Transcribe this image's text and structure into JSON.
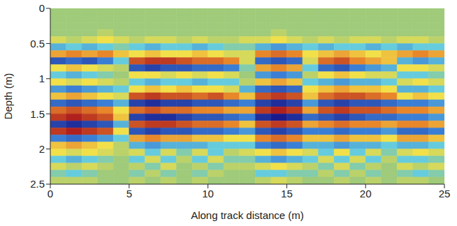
{
  "chart_data": {
    "type": "heatmap",
    "xlabel": "Along track distance (m)",
    "ylabel": "Depth (m)",
    "xlim": [
      0,
      25
    ],
    "xticks": [
      0,
      5,
      10,
      15,
      20,
      25
    ],
    "ylim": [
      2.5,
      0
    ],
    "yticks": [
      0,
      0.5,
      1,
      1.5,
      2,
      2.5
    ],
    "zlim": [
      -1,
      1
    ],
    "x": [
      0.5,
      1.5,
      2.5,
      3.5,
      4.5,
      5.5,
      6.5,
      7.5,
      8.5,
      9.5,
      10.5,
      11.5,
      12.5,
      13.5,
      14.5,
      15.5,
      16.5,
      17.5,
      18.5,
      19.5,
      20.5,
      21.5,
      22.5,
      23.5,
      24.5
    ],
    "y": [
      0.05,
      0.15,
      0.25,
      0.35,
      0.45,
      0.55,
      0.65,
      0.75,
      0.85,
      0.95,
      1.05,
      1.15,
      1.25,
      1.35,
      1.45,
      1.55,
      1.65,
      1.75,
      1.85,
      1.95,
      2.05,
      2.15,
      2.25,
      2.35,
      2.45
    ],
    "z": [
      [
        0,
        0,
        0,
        0,
        0,
        0,
        0,
        0,
        0,
        0,
        0,
        0,
        0,
        0,
        0,
        0,
        0,
        0,
        0,
        0,
        0,
        0,
        0,
        0,
        0
      ],
      [
        0,
        0,
        0,
        0,
        0,
        0,
        0,
        0,
        0,
        0,
        0,
        0,
        0,
        0,
        0,
        0,
        0,
        0,
        0,
        0,
        0,
        0,
        0,
        0,
        0
      ],
      [
        0,
        0,
        0,
        0,
        0,
        0,
        0,
        0,
        0,
        0,
        0,
        0,
        0,
        0,
        0,
        0,
        0,
        0,
        0,
        0,
        0,
        0,
        0,
        0,
        0
      ],
      [
        0,
        0,
        0,
        0.1,
        0,
        0,
        0,
        0,
        0,
        0,
        0,
        0,
        0,
        0,
        0.1,
        0,
        0,
        0,
        0,
        0,
        0,
        0,
        0,
        0,
        0
      ],
      [
        0.2,
        0.1,
        0.2,
        0.3,
        0.2,
        0.1,
        0.2,
        0.2,
        0.1,
        0.2,
        0.1,
        0.1,
        0.2,
        0.2,
        0.3,
        0.2,
        0.1,
        0.2,
        0.1,
        0.2,
        0.2,
        0.1,
        0.2,
        0.2,
        0.1
      ],
      [
        -0.3,
        -0.2,
        -0.3,
        -0.2,
        -0.1,
        -0.2,
        -0.3,
        -0.2,
        -0.2,
        -0.3,
        -0.2,
        -0.1,
        -0.1,
        -0.3,
        -0.4,
        -0.3,
        -0.2,
        -0.3,
        -0.2,
        -0.2,
        -0.3,
        -0.2,
        -0.3,
        -0.2,
        -0.2
      ],
      [
        0.5,
        0.6,
        0.5,
        0.6,
        0.4,
        0.3,
        0.4,
        0.3,
        0.3,
        0.4,
        0.3,
        0.2,
        0.2,
        0.6,
        0.7,
        0.6,
        0.3,
        0.4,
        0.5,
        0.4,
        0.3,
        0.4,
        0.5,
        0.6,
        0.5
      ],
      [
        -0.7,
        -0.6,
        -0.7,
        -0.5,
        -0.2,
        0.8,
        0.9,
        0.9,
        0.8,
        0.7,
        0.7,
        0.6,
        0.2,
        -0.6,
        -0.7,
        -0.6,
        0.2,
        0.7,
        0.8,
        0.6,
        0.5,
        0.4,
        -0.3,
        -0.4,
        -0.3
      ],
      [
        0.3,
        0.4,
        0.3,
        0.2,
        0.1,
        -0.7,
        -0.8,
        -0.7,
        -0.7,
        -0.6,
        -0.6,
        -0.5,
        -0.1,
        0.5,
        0.6,
        0.5,
        -0.2,
        -0.6,
        -0.7,
        -0.5,
        -0.4,
        -0.3,
        0.3,
        0.3,
        0.2
      ],
      [
        -0.2,
        -0.3,
        -0.2,
        -0.1,
        0,
        0.3,
        0.3,
        0.2,
        0.3,
        0.2,
        0.3,
        0.2,
        0,
        -0.4,
        -0.5,
        -0.4,
        0.1,
        0.3,
        0.4,
        0.3,
        0.2,
        0.2,
        -0.2,
        -0.2,
        -0.1
      ],
      [
        0.3,
        0.2,
        0.3,
        0.2,
        0.1,
        -0.2,
        -0.3,
        -0.2,
        -0.2,
        -0.3,
        -0.2,
        -0.2,
        0.1,
        0.4,
        0.5,
        0.4,
        -0.2,
        -0.3,
        -0.4,
        -0.3,
        -0.3,
        -0.2,
        0.2,
        0.3,
        0.2
      ],
      [
        -0.4,
        -0.5,
        -0.4,
        -0.3,
        -0.2,
        0.3,
        0.4,
        0.3,
        0.4,
        0.3,
        0.3,
        0.2,
        -0.3,
        -0.6,
        -0.7,
        -0.6,
        0.3,
        0.4,
        0.5,
        0.4,
        0.4,
        0.3,
        -0.3,
        -0.3,
        -0.2
      ],
      [
        0.4,
        0.5,
        0.4,
        0.3,
        0.2,
        0.8,
        0.9,
        0.8,
        0.8,
        0.7,
        0.8,
        0.6,
        0.4,
        0.8,
        0.9,
        0.8,
        0.4,
        0.7,
        0.8,
        0.8,
        0.7,
        0.6,
        0.3,
        0.4,
        0.3
      ],
      [
        -0.6,
        -0.7,
        -0.6,
        -0.5,
        -0.3,
        -0.8,
        -0.9,
        -0.8,
        -0.8,
        -0.7,
        -0.7,
        -0.6,
        -0.5,
        -0.8,
        -0.9,
        -0.8,
        -0.4,
        -0.7,
        -0.8,
        -0.7,
        -0.7,
        -0.6,
        -0.5,
        -0.5,
        -0.4
      ],
      [
        0.7,
        0.8,
        0.7,
        0.6,
        0.3,
        0.7,
        0.8,
        0.7,
        0.7,
        0.6,
        0.6,
        0.5,
        0.5,
        0.9,
        1.0,
        0.9,
        0.5,
        0.8,
        0.9,
        0.8,
        0.8,
        0.7,
        0.6,
        0.6,
        0.5
      ],
      [
        0.9,
        1.0,
        0.9,
        0.8,
        0.4,
        -0.8,
        -0.9,
        -0.9,
        -0.8,
        -0.7,
        -0.7,
        -0.6,
        -0.5,
        -0.9,
        -1.0,
        -0.9,
        -0.6,
        -0.7,
        -0.8,
        -0.7,
        -0.6,
        -0.6,
        -0.5,
        -0.5,
        -0.4
      ],
      [
        -0.8,
        -0.9,
        -0.8,
        -0.7,
        -0.3,
        0.8,
        0.9,
        0.9,
        0.8,
        0.7,
        0.7,
        0.6,
        0.4,
        0.8,
        0.9,
        0.8,
        0.5,
        0.6,
        0.7,
        0.6,
        0.6,
        0.5,
        0.6,
        0.6,
        0.5
      ],
      [
        0.9,
        1.0,
        0.9,
        0.8,
        0.3,
        -0.7,
        -0.8,
        -0.7,
        -0.7,
        -0.6,
        -0.6,
        -0.5,
        -0.4,
        -0.7,
        -0.8,
        -0.7,
        -0.5,
        -0.5,
        -0.6,
        -0.5,
        -0.5,
        -0.4,
        -0.6,
        -0.6,
        -0.5
      ],
      [
        -0.5,
        -0.6,
        -0.5,
        -0.4,
        -0.2,
        0.5,
        0.6,
        0.5,
        0.5,
        0.4,
        0.4,
        0.3,
        0.3,
        0.6,
        0.7,
        0.6,
        0.4,
        0.4,
        0.5,
        0.4,
        0.4,
        0.3,
        0.5,
        0.5,
        0.4
      ],
      [
        0.4,
        0.5,
        0.4,
        0.3,
        0.1,
        -0.3,
        -0.4,
        -0.3,
        -0.3,
        -0.3,
        -0.2,
        -0.2,
        -0.2,
        -0.5,
        -0.6,
        -0.5,
        -0.3,
        -0.3,
        -0.4,
        -0.3,
        -0.3,
        -0.2,
        -0.3,
        -0.3,
        -0.2
      ],
      [
        0.3,
        0.2,
        0.3,
        0.2,
        0.1,
        0.2,
        -0.2,
        0.2,
        -0.1,
        0.2,
        -0.2,
        0.1,
        0.2,
        0.3,
        0.4,
        0.3,
        0.2,
        -0.2,
        0.3,
        -0.2,
        0.2,
        -0.1,
        0.2,
        0.3,
        0.2
      ],
      [
        -0.2,
        -0.3,
        -0.2,
        -0.1,
        0,
        -0.2,
        0.2,
        -0.2,
        0.1,
        -0.2,
        0.2,
        -0.1,
        -0.1,
        -0.3,
        -0.4,
        -0.3,
        -0.2,
        0.2,
        -0.2,
        0.2,
        -0.2,
        0.1,
        -0.2,
        -0.2,
        -0.1
      ],
      [
        0.2,
        0.1,
        0.2,
        0.1,
        0,
        0.1,
        -0.1,
        0.2,
        0,
        0.1,
        -0.1,
        0.1,
        0.1,
        0.2,
        0.3,
        0.2,
        0.1,
        -0.1,
        0.2,
        -0.1,
        0.1,
        0,
        0.2,
        0.1,
        0.2
      ],
      [
        -0.1,
        -0.2,
        -0.1,
        0,
        0,
        -0.1,
        0.1,
        -0.1,
        0,
        -0.1,
        0.1,
        0,
        0,
        -0.2,
        -0.2,
        -0.1,
        -0.1,
        0.1,
        -0.1,
        0.1,
        -0.1,
        0,
        -0.1,
        -0.2,
        -0.1
      ],
      [
        0.1,
        0.1,
        0.1,
        0,
        0,
        0.1,
        0,
        0.1,
        0,
        0.1,
        0,
        0,
        0,
        0.1,
        0.2,
        0.1,
        0,
        0,
        0.1,
        0,
        0.1,
        0,
        0.1,
        0.1,
        0
      ]
    ]
  }
}
